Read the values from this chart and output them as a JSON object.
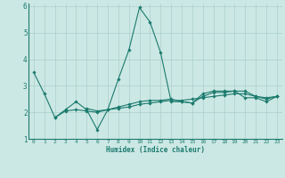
{
  "xlabel": "Humidex (Indice chaleur)",
  "xlim": [
    -0.5,
    23.5
  ],
  "ylim": [
    1,
    6.1
  ],
  "yticks": [
    1,
    2,
    3,
    4,
    5,
    6
  ],
  "xticks": [
    0,
    1,
    2,
    3,
    4,
    5,
    6,
    7,
    8,
    9,
    10,
    11,
    12,
    13,
    14,
    15,
    16,
    17,
    18,
    19,
    20,
    21,
    22,
    23
  ],
  "bg_color": "#cce8e4",
  "line_color": "#1a7a6e",
  "grid_color": "#aacfcb",
  "lines": [
    {
      "x": [
        0,
        1,
        2,
        3,
        4,
        5,
        6,
        7,
        8,
        9,
        10,
        11,
        12,
        13,
        14,
        15,
        16,
        17,
        18,
        19,
        20,
        21,
        22,
        23
      ],
      "y": [
        3.5,
        2.7,
        1.8,
        2.1,
        2.4,
        2.1,
        1.35,
        2.1,
        3.25,
        4.35,
        5.95,
        5.4,
        4.25,
        2.4,
        2.4,
        2.35,
        2.7,
        2.8,
        2.8,
        2.8,
        2.55,
        2.55,
        2.4,
        2.6
      ],
      "linestyle": "-"
    },
    {
      "x": [
        2,
        3,
        4,
        5,
        6,
        7,
        8,
        9,
        10,
        11,
        12,
        13,
        14,
        15,
        16,
        17,
        18,
        19,
        20,
        21,
        22,
        23
      ],
      "y": [
        1.8,
        2.05,
        2.1,
        2.05,
        2.0,
        2.1,
        2.15,
        2.2,
        2.3,
        2.35,
        2.4,
        2.45,
        2.45,
        2.5,
        2.55,
        2.6,
        2.65,
        2.7,
        2.7,
        2.6,
        2.55,
        2.6
      ],
      "linestyle": "-"
    },
    {
      "x": [
        5,
        6,
        7,
        8,
        9,
        10,
        11,
        12,
        13,
        14,
        15,
        16,
        17,
        18,
        19,
        20,
        21,
        22,
        23
      ],
      "y": [
        2.15,
        2.05,
        2.1,
        2.2,
        2.3,
        2.4,
        2.45,
        2.45,
        2.5,
        2.4,
        2.35,
        2.6,
        2.75,
        2.75,
        2.8,
        2.8,
        2.6,
        2.5,
        2.6
      ],
      "linestyle": "-"
    }
  ]
}
